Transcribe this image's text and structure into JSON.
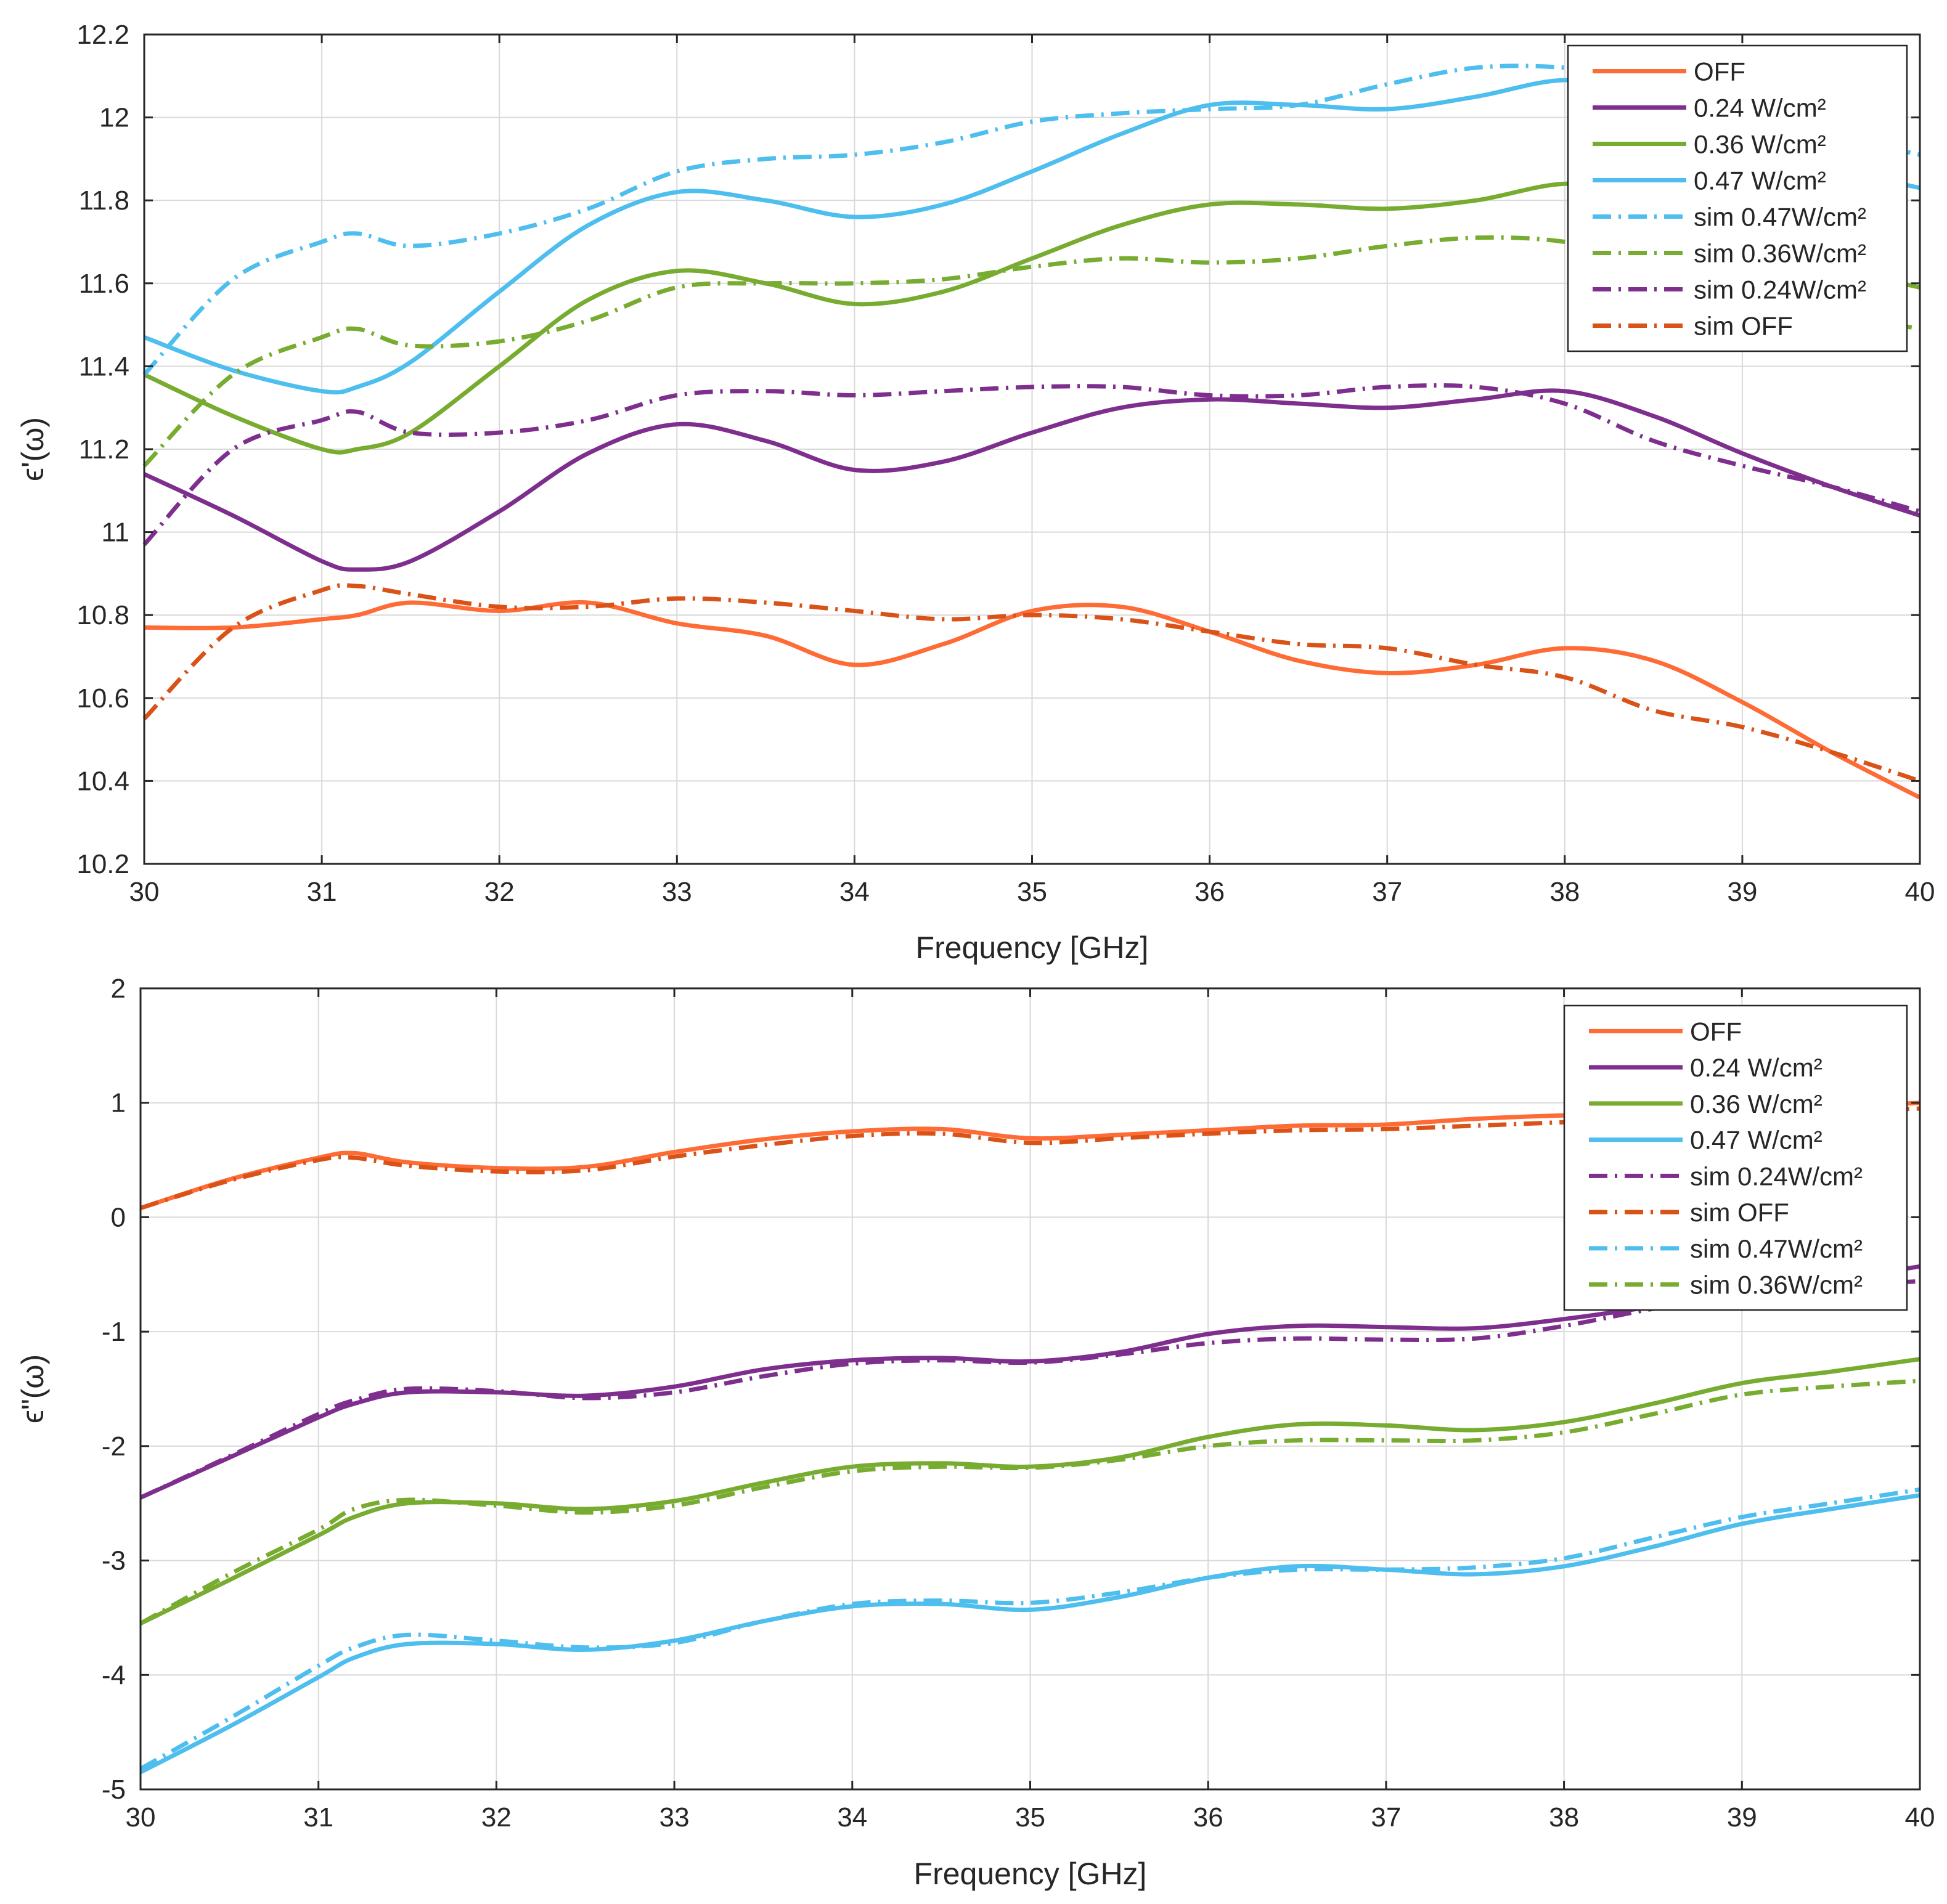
{
  "chart_data": [
    {
      "type": "line",
      "title": "",
      "xlabel": "Frequency [GHz]",
      "ylabel": "ϵ'(ω)",
      "xlim": [
        30,
        40
      ],
      "ylim": [
        10.2,
        12.2
      ],
      "x_ticks": [
        "30",
        "31",
        "32",
        "33",
        "34",
        "35",
        "36",
        "37",
        "38",
        "39",
        "40"
      ],
      "y_ticks": [
        "10.2",
        "10.4",
        "10.6",
        "10.8",
        "11",
        "11.2",
        "11.4",
        "11.6",
        "11.8",
        "12",
        "12.2"
      ],
      "grid": true,
      "legend_position": "top-right",
      "series": [
        {
          "name": "OFF",
          "color": "#FF6B35",
          "style": "solid",
          "x": [
            30,
            30.5,
            31,
            31.2,
            31.5,
            32,
            32.5,
            33,
            33.5,
            34,
            34.5,
            35,
            35.5,
            36,
            36.5,
            37,
            37.5,
            38,
            38.5,
            39,
            39.5,
            40
          ],
          "y": [
            10.77,
            10.77,
            10.79,
            10.8,
            10.83,
            10.81,
            10.83,
            10.78,
            10.75,
            10.68,
            10.73,
            10.81,
            10.82,
            10.76,
            10.69,
            10.66,
            10.68,
            10.72,
            10.69,
            10.59,
            10.47,
            10.36
          ]
        },
        {
          "name": "0.24 W/cm²",
          "color": "#7E2F8E",
          "style": "solid",
          "x": [
            30,
            30.5,
            31,
            31.2,
            31.5,
            32,
            32.5,
            33,
            33.5,
            34,
            34.5,
            35,
            35.5,
            36,
            36.5,
            37,
            37.5,
            38,
            38.5,
            39,
            39.5,
            40
          ],
          "y": [
            11.14,
            11.04,
            10.93,
            10.91,
            10.93,
            11.05,
            11.19,
            11.26,
            11.22,
            11.15,
            11.17,
            11.24,
            11.3,
            11.32,
            11.31,
            11.3,
            11.32,
            11.34,
            11.28,
            11.19,
            11.11,
            11.04
          ]
        },
        {
          "name": "0.36 W/cm²",
          "color": "#77AC30",
          "style": "solid",
          "x": [
            30,
            30.5,
            31,
            31.2,
            31.5,
            32,
            32.5,
            33,
            33.5,
            34,
            34.5,
            35,
            35.5,
            36,
            36.5,
            37,
            37.5,
            38,
            38.5,
            39,
            39.5,
            40
          ],
          "y": [
            11.38,
            11.28,
            11.2,
            11.2,
            11.24,
            11.4,
            11.56,
            11.63,
            11.6,
            11.55,
            11.58,
            11.66,
            11.74,
            11.79,
            11.79,
            11.78,
            11.8,
            11.84,
            11.82,
            11.71,
            11.64,
            11.59
          ]
        },
        {
          "name": "0.47 W/cm²",
          "color": "#4DBEEE",
          "style": "solid",
          "x": [
            30,
            30.5,
            31,
            31.2,
            31.5,
            32,
            32.5,
            33,
            33.5,
            34,
            34.5,
            35,
            35.5,
            36,
            36.5,
            37,
            37.5,
            38,
            38.5,
            39,
            39.5,
            40
          ],
          "y": [
            11.47,
            11.39,
            11.34,
            11.35,
            11.41,
            11.58,
            11.74,
            11.82,
            11.8,
            11.76,
            11.79,
            11.87,
            11.96,
            12.03,
            12.03,
            12.02,
            12.05,
            12.09,
            12.06,
            11.96,
            11.88,
            11.83
          ]
        },
        {
          "name": "sim 0.47W/cm²",
          "color": "#4DBEEE",
          "style": "dashdot",
          "x": [
            30,
            30.5,
            31,
            31.2,
            31.5,
            32,
            32.5,
            33,
            33.5,
            34,
            34.5,
            35,
            35.5,
            36,
            36.5,
            37,
            37.5,
            38,
            38.5,
            39,
            39.5,
            40
          ],
          "y": [
            11.38,
            11.61,
            11.7,
            11.72,
            11.69,
            11.72,
            11.78,
            11.87,
            11.9,
            11.91,
            11.94,
            11.99,
            12.01,
            12.02,
            12.03,
            12.08,
            12.12,
            12.12,
            12.09,
            12.02,
            11.96,
            11.91
          ]
        },
        {
          "name": "sim 0.36W/cm²",
          "color": "#77AC30",
          "style": "dashdot",
          "x": [
            30,
            30.5,
            31,
            31.2,
            31.5,
            32,
            32.5,
            33,
            33.5,
            34,
            34.5,
            35,
            35.5,
            36,
            36.5,
            37,
            37.5,
            38,
            38.5,
            39,
            39.5,
            40
          ],
          "y": [
            11.16,
            11.38,
            11.47,
            11.49,
            11.45,
            11.46,
            11.51,
            11.59,
            11.6,
            11.6,
            11.61,
            11.64,
            11.66,
            11.65,
            11.66,
            11.69,
            11.71,
            11.7,
            11.65,
            11.58,
            11.53,
            11.49
          ]
        },
        {
          "name": "sim 0.24W/cm²",
          "color": "#7E2F8E",
          "style": "dashdot",
          "x": [
            30,
            30.5,
            31,
            31.2,
            31.5,
            32,
            32.5,
            33,
            33.5,
            34,
            34.5,
            35,
            35.5,
            36,
            36.5,
            37,
            37.5,
            38,
            38.5,
            39,
            39.5,
            40
          ],
          "y": [
            10.97,
            11.2,
            11.27,
            11.29,
            11.24,
            11.24,
            11.27,
            11.33,
            11.34,
            11.33,
            11.34,
            11.35,
            11.35,
            11.33,
            11.33,
            11.35,
            11.35,
            11.31,
            11.22,
            11.16,
            11.11,
            11.05
          ]
        },
        {
          "name": "sim OFF",
          "color": "#D95319",
          "style": "dashdot",
          "x": [
            30,
            30.5,
            31,
            31.2,
            31.5,
            32,
            32.5,
            33,
            33.5,
            34,
            34.5,
            35,
            35.5,
            36,
            36.5,
            37,
            37.5,
            38,
            38.5,
            39,
            39.5,
            40
          ],
          "y": [
            10.55,
            10.77,
            10.86,
            10.87,
            10.85,
            10.82,
            10.82,
            10.84,
            10.83,
            10.81,
            10.79,
            10.8,
            10.79,
            10.76,
            10.73,
            10.72,
            10.68,
            10.65,
            10.57,
            10.53,
            10.47,
            10.4
          ]
        }
      ]
    },
    {
      "type": "line",
      "title": "",
      "xlabel": "Frequency [GHz]",
      "ylabel": "ϵ\"(ω)",
      "xlim": [
        30,
        40
      ],
      "ylim": [
        -5,
        2
      ],
      "x_ticks": [
        "30",
        "31",
        "32",
        "33",
        "34",
        "35",
        "36",
        "37",
        "38",
        "39",
        "40"
      ],
      "y_ticks": [
        "-5",
        "-4",
        "-3",
        "-2",
        "-1",
        "0",
        "1",
        "2"
      ],
      "grid": true,
      "legend_position": "top-right",
      "series": [
        {
          "name": "OFF",
          "color": "#FF6B35",
          "style": "solid",
          "x": [
            30,
            30.5,
            31,
            31.2,
            31.5,
            32,
            32.5,
            33,
            33.5,
            34,
            34.5,
            35,
            35.5,
            36,
            36.5,
            37,
            37.5,
            38,
            38.5,
            39,
            39.5,
            40
          ],
          "y": [
            0.08,
            0.33,
            0.52,
            0.56,
            0.48,
            0.43,
            0.44,
            0.57,
            0.68,
            0.75,
            0.77,
            0.69,
            0.72,
            0.76,
            0.8,
            0.81,
            0.86,
            0.89,
            0.91,
            0.93,
            0.96,
            1.0
          ]
        },
        {
          "name": "0.24 W/cm²",
          "color": "#7E2F8E",
          "style": "solid",
          "x": [
            30,
            30.5,
            31,
            31.2,
            31.5,
            32,
            32.5,
            33,
            33.5,
            34,
            34.5,
            35,
            35.5,
            36,
            36.5,
            37,
            37.5,
            38,
            38.5,
            39,
            39.5,
            40
          ],
          "y": [
            -2.45,
            -2.1,
            -1.75,
            -1.63,
            -1.53,
            -1.53,
            -1.56,
            -1.48,
            -1.33,
            -1.25,
            -1.23,
            -1.26,
            -1.18,
            -1.02,
            -0.95,
            -0.96,
            -0.97,
            -0.89,
            -0.78,
            -0.66,
            -0.55,
            -0.43
          ]
        },
        {
          "name": "0.36 W/cm²",
          "color": "#77AC30",
          "style": "solid",
          "x": [
            30,
            30.5,
            31,
            31.2,
            31.5,
            32,
            32.5,
            33,
            33.5,
            34,
            34.5,
            35,
            35.5,
            36,
            36.5,
            37,
            37.5,
            38,
            38.5,
            39,
            39.5,
            40
          ],
          "y": [
            -3.55,
            -3.17,
            -2.78,
            -2.62,
            -2.5,
            -2.5,
            -2.55,
            -2.48,
            -2.32,
            -2.18,
            -2.15,
            -2.18,
            -2.1,
            -1.92,
            -1.81,
            -1.82,
            -1.86,
            -1.79,
            -1.63,
            -1.45,
            -1.35,
            -1.24
          ]
        },
        {
          "name": "0.47 W/cm²",
          "color": "#4DBEEE",
          "style": "solid",
          "x": [
            30,
            30.5,
            31,
            31.2,
            31.5,
            32,
            32.5,
            33,
            33.5,
            34,
            34.5,
            35,
            35.5,
            36,
            36.5,
            37,
            37.5,
            38,
            38.5,
            39,
            39.5,
            40
          ],
          "y": [
            -4.85,
            -4.45,
            -4.02,
            -3.85,
            -3.73,
            -3.73,
            -3.78,
            -3.7,
            -3.53,
            -3.4,
            -3.38,
            -3.43,
            -3.32,
            -3.15,
            -3.05,
            -3.08,
            -3.12,
            -3.05,
            -2.88,
            -2.68,
            -2.55,
            -2.43
          ]
        },
        {
          "name": "sim 0.24W/cm²",
          "color": "#7E2F8E",
          "style": "dashdot",
          "x": [
            30,
            30.5,
            31,
            31.2,
            31.5,
            32,
            32.5,
            33,
            33.5,
            34,
            34.5,
            35,
            35.5,
            36,
            36.5,
            37,
            37.5,
            38,
            38.5,
            39,
            39.5,
            40
          ],
          "y": [
            -2.45,
            -2.09,
            -1.72,
            -1.6,
            -1.5,
            -1.52,
            -1.58,
            -1.53,
            -1.39,
            -1.28,
            -1.25,
            -1.27,
            -1.2,
            -1.1,
            -1.06,
            -1.07,
            -1.06,
            -0.95,
            -0.8,
            -0.68,
            -0.6,
            -0.56
          ]
        },
        {
          "name": "sim OFF",
          "color": "#D95319",
          "style": "dashdot",
          "x": [
            30,
            30.5,
            31,
            31.2,
            31.5,
            32,
            32.5,
            33,
            33.5,
            34,
            34.5,
            35,
            35.5,
            36,
            36.5,
            37,
            37.5,
            38,
            38.5,
            39,
            39.5,
            40
          ],
          "y": [
            0.08,
            0.32,
            0.5,
            0.52,
            0.45,
            0.4,
            0.41,
            0.53,
            0.63,
            0.71,
            0.73,
            0.65,
            0.69,
            0.73,
            0.76,
            0.77,
            0.8,
            0.83,
            0.86,
            0.89,
            0.92,
            0.95
          ]
        },
        {
          "name": "sim 0.47W/cm²",
          "color": "#4DBEEE",
          "style": "dashdot",
          "x": [
            30,
            30.5,
            31,
            31.2,
            31.5,
            32,
            32.5,
            33,
            33.5,
            34,
            34.5,
            35,
            35.5,
            36,
            36.5,
            37,
            37.5,
            38,
            38.5,
            39,
            39.5,
            40
          ],
          "y": [
            -4.82,
            -4.38,
            -3.92,
            -3.76,
            -3.65,
            -3.7,
            -3.76,
            -3.72,
            -3.53,
            -3.38,
            -3.35,
            -3.37,
            -3.28,
            -3.15,
            -3.08,
            -3.08,
            -3.06,
            -2.98,
            -2.8,
            -2.62,
            -2.5,
            -2.38
          ]
        },
        {
          "name": "sim 0.36W/cm²",
          "color": "#77AC30",
          "style": "dashdot",
          "x": [
            30,
            30.5,
            31,
            31.2,
            31.5,
            32,
            32.5,
            33,
            33.5,
            34,
            34.5,
            35,
            35.5,
            36,
            36.5,
            37,
            37.5,
            38,
            38.5,
            39,
            39.5,
            40
          ],
          "y": [
            -3.55,
            -3.12,
            -2.73,
            -2.55,
            -2.47,
            -2.52,
            -2.58,
            -2.52,
            -2.36,
            -2.22,
            -2.18,
            -2.19,
            -2.12,
            -2.0,
            -1.95,
            -1.95,
            -1.95,
            -1.88,
            -1.72,
            -1.55,
            -1.48,
            -1.43
          ]
        }
      ]
    }
  ]
}
